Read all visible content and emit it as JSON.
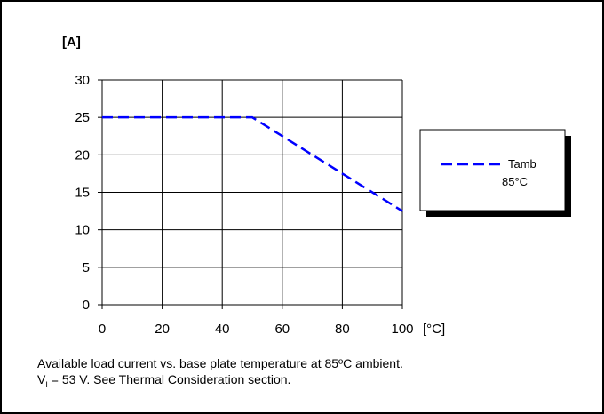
{
  "chart_data": {
    "type": "line",
    "ylabel": "[A]",
    "xunit": "[°C]",
    "xlim": [
      0,
      100
    ],
    "ylim": [
      0,
      30
    ],
    "xticks": [
      0,
      20,
      40,
      60,
      80,
      100
    ],
    "yticks": [
      0,
      5,
      10,
      15,
      20,
      25,
      30
    ],
    "grid": true,
    "legend_position": "right",
    "series": [
      {
        "name": "Tamb 85°C",
        "name_lines": [
          "Tamb",
          "85°C"
        ],
        "color": "#0000ff",
        "style": "dashed",
        "x": [
          0,
          50,
          100
        ],
        "y": [
          25,
          25,
          12.5
        ]
      }
    ]
  },
  "caption": {
    "line1": "Available load current vs. base plate temperature at 85ºC ambient.",
    "line2_prefix": "V",
    "line2_sub": "I",
    "line2_rest": " = 53 V. See Thermal Consideration section."
  }
}
